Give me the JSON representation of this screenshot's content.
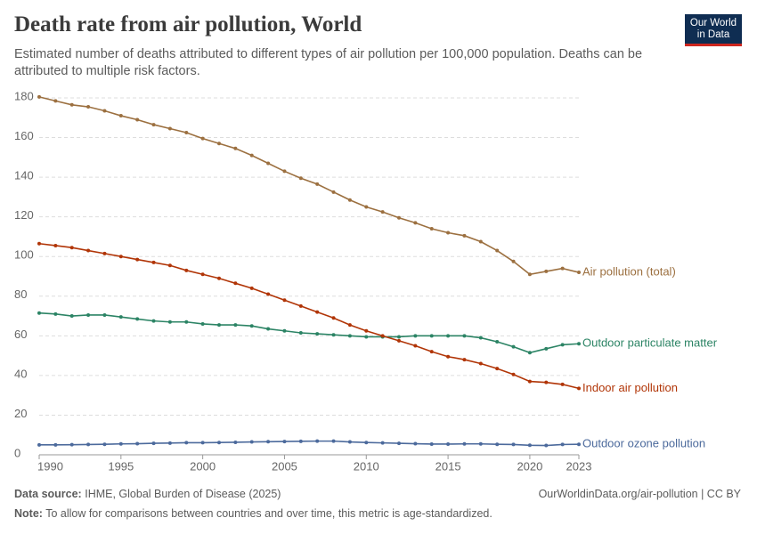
{
  "chart_data": {
    "type": "line",
    "title": "Death rate from air pollution, World",
    "subtitle": "Estimated number of deaths attributed to different types of air pollution per 100,000 population. Deaths can be attributed to multiple risk factors.",
    "logo": "Our World in Data",
    "source_label": "Data source:",
    "source": "IHME, Global Burden of Disease (2025)",
    "url": "OurWorldinData.org/air-pollution | CC BY",
    "note_label": "Note:",
    "note": "To allow for comparisons between countries and over time, this metric is age-standardized.",
    "x": [
      1990,
      1991,
      1992,
      1993,
      1994,
      1995,
      1996,
      1997,
      1998,
      1999,
      2000,
      2001,
      2002,
      2003,
      2004,
      2005,
      2006,
      2007,
      2008,
      2009,
      2010,
      2011,
      2012,
      2013,
      2014,
      2015,
      2016,
      2017,
      2018,
      2019,
      2020,
      2021,
      2022,
      2023
    ],
    "xlim": [
      1990,
      2023
    ],
    "xticks": [
      1990,
      1995,
      2000,
      2005,
      2010,
      2015,
      2020,
      2023
    ],
    "ylim": [
      0,
      180
    ],
    "yticks": [
      0,
      20,
      40,
      60,
      80,
      100,
      120,
      140,
      160,
      180
    ],
    "grid": true,
    "series": [
      {
        "name": "Air pollution (total)",
        "color": "#9c7040",
        "values": [
          180.5,
          178.5,
          176.5,
          175.5,
          173.5,
          171,
          169,
          166.5,
          164.5,
          162.5,
          159.5,
          157,
          154.5,
          151,
          147,
          143,
          139.5,
          136.5,
          132.5,
          128.5,
          125,
          122.5,
          119.5,
          117,
          114,
          112,
          110.5,
          107.5,
          103,
          97.5,
          91,
          92.5,
          94,
          92
        ]
      },
      {
        "name": "Outdoor particulate matter",
        "color": "#2c8465",
        "values": [
          71.5,
          71,
          70,
          70.5,
          70.5,
          69.5,
          68.5,
          67.5,
          67,
          67,
          66,
          65.5,
          65.5,
          65,
          63.5,
          62.5,
          61.5,
          61,
          60.5,
          60,
          59.5,
          59.5,
          59.5,
          60,
          60,
          60,
          60,
          59,
          57,
          54.5,
          51.5,
          53.5,
          55.5,
          56
        ]
      },
      {
        "name": "Indoor air pollution",
        "color": "#b13507",
        "values": [
          106.5,
          105.5,
          104.5,
          103,
          101.5,
          100,
          98.5,
          97,
          95.5,
          93,
          91,
          89,
          86.5,
          84,
          81,
          78,
          75,
          72,
          69,
          65.5,
          62.5,
          60,
          57.5,
          55,
          52,
          49.5,
          48,
          46,
          43.5,
          40.5,
          37,
          36.5,
          35.5,
          33.5
        ]
      },
      {
        "name": "Outdoor ozone pollution",
        "color": "#4c6a9c",
        "values": [
          5,
          5,
          5.1,
          5.2,
          5.3,
          5.5,
          5.6,
          5.8,
          5.9,
          6.1,
          6.1,
          6.2,
          6.3,
          6.5,
          6.6,
          6.7,
          6.8,
          6.9,
          6.9,
          6.5,
          6.2,
          6,
          5.8,
          5.6,
          5.4,
          5.4,
          5.5,
          5.5,
          5.3,
          5.2,
          4.8,
          4.7,
          5.2,
          5.3
        ]
      }
    ]
  }
}
